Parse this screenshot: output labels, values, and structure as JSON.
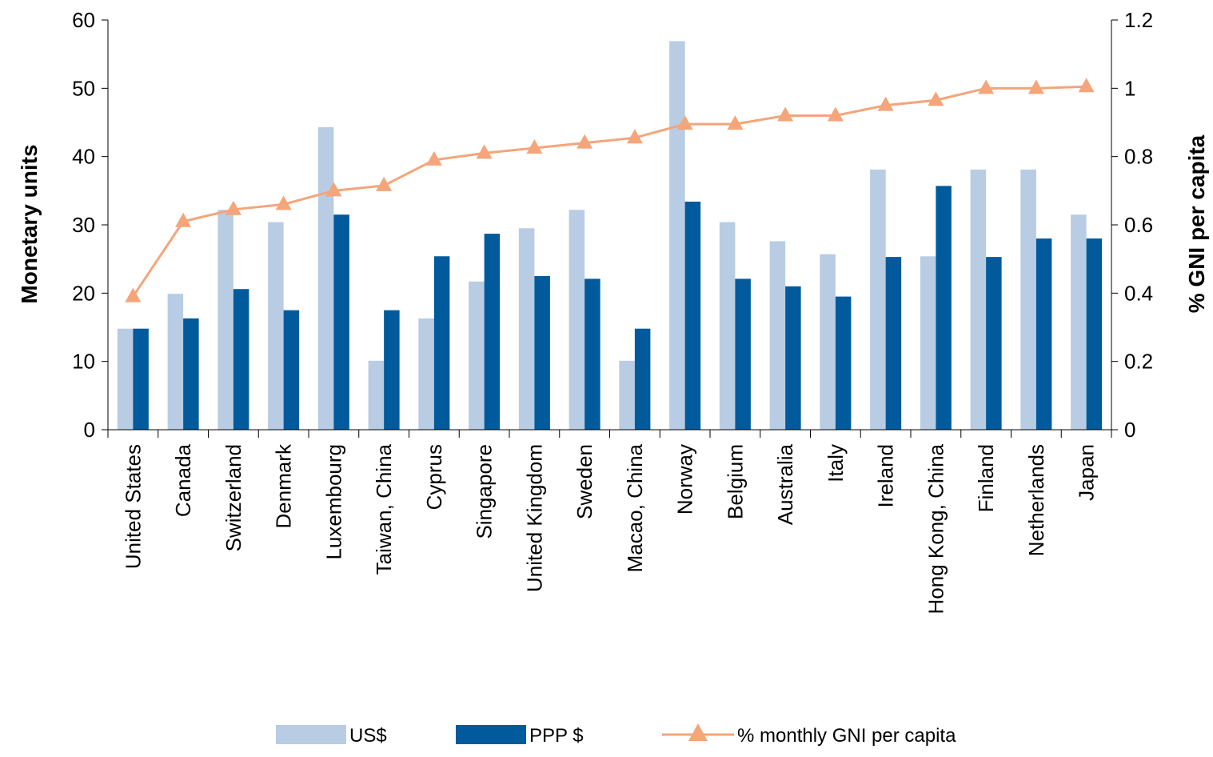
{
  "chart_data": {
    "type": "bar",
    "ylabel": "Monetary units",
    "y2label": "% GNI per capita",
    "ylim": [
      0,
      60
    ],
    "y2lim": [
      0,
      1.2
    ],
    "yticks": [
      "0",
      "10",
      "20",
      "30",
      "40",
      "50",
      "60"
    ],
    "y2ticks": [
      "0",
      "0.2",
      "0.4",
      "0.6",
      "0.8",
      "1",
      "1.2"
    ],
    "grid": false,
    "legend_position": "bottom",
    "categories": [
      "United States",
      "Canada",
      "Switzerland",
      "Denmark",
      "Luxembourg",
      "Taiwan, China",
      "Cyprus",
      "Singapore",
      "United Kingdom",
      "Sweden",
      "Macao, China",
      "Norway",
      "Belgium",
      "Australia",
      "Italy",
      "Ireland",
      "Hong Kong, China",
      "Finland",
      "Netherlands",
      "Japan"
    ],
    "series": [
      {
        "name": "US$",
        "type": "bar",
        "axis": "left",
        "color": "#b8cce4",
        "values": [
          14.8,
          19.9,
          32.2,
          30.4,
          44.3,
          10.1,
          16.3,
          21.7,
          29.5,
          32.2,
          10.1,
          56.9,
          30.4,
          27.6,
          25.7,
          38.1,
          25.4,
          38.1,
          38.1,
          31.5
        ]
      },
      {
        "name": "PPP $",
        "type": "bar",
        "axis": "left",
        "color": "#005a9c",
        "values": [
          14.8,
          16.3,
          20.6,
          17.5,
          31.5,
          17.5,
          25.4,
          28.7,
          22.5,
          22.1,
          14.8,
          33.4,
          22.1,
          21.0,
          19.5,
          25.3,
          35.7,
          25.3,
          28.0,
          28.0
        ]
      },
      {
        "name": "% monthly GNI per capita",
        "type": "line",
        "axis": "right",
        "color": "#f4a57a",
        "marker": "triangle",
        "values": [
          0.39,
          0.61,
          0.645,
          0.66,
          0.7,
          0.715,
          0.79,
          0.81,
          0.825,
          0.84,
          0.855,
          0.895,
          0.895,
          0.92,
          0.92,
          0.95,
          0.965,
          1.0,
          1.0,
          1.005
        ]
      }
    ]
  }
}
